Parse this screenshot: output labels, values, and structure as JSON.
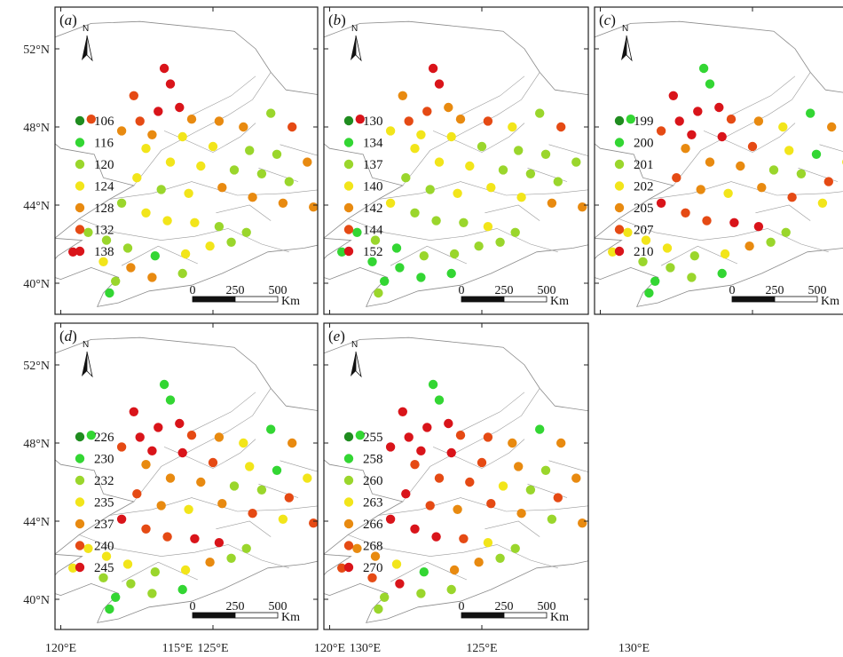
{
  "colors": [
    "#1f8c1f",
    "#33d633",
    "#9ad62c",
    "#f2e51a",
    "#e88a10",
    "#e54a14",
    "#d9141a"
  ],
  "lat_ticks": [
    "52°N",
    "48°N",
    "44°N",
    "40°N"
  ],
  "lon_ticks": [
    "115°E",
    "120°E",
    "125°E",
    "130°E"
  ],
  "north_label": "N",
  "scalebar": {
    "labels": [
      "0",
      "250",
      "500"
    ],
    "unit": "Km"
  },
  "panels": [
    {
      "id": "a",
      "letter": "a",
      "legend": [
        "106",
        "116",
        "120",
        "124",
        "128",
        "132",
        "138"
      ]
    },
    {
      "id": "b",
      "letter": "b",
      "legend": [
        "130",
        "134",
        "137",
        "140",
        "142",
        "144",
        "152"
      ]
    },
    {
      "id": "c",
      "letter": "c",
      "legend": [
        "199",
        "200",
        "201",
        "202",
        "205",
        "207",
        "210"
      ]
    },
    {
      "id": "d",
      "letter": "d",
      "legend": [
        "226",
        "230",
        "232",
        "235",
        "237",
        "240",
        "245"
      ]
    },
    {
      "id": "e",
      "letter": "e",
      "legend": [
        "255",
        "258",
        "260",
        "263",
        "266",
        "268",
        "270"
      ]
    }
  ],
  "stations": [
    [
      123.4,
      51.0
    ],
    [
      123.6,
      50.2
    ],
    [
      122.4,
      49.6
    ],
    [
      121.0,
      48.4
    ],
    [
      122.6,
      48.3
    ],
    [
      123.2,
      48.8
    ],
    [
      123.9,
      49.0
    ],
    [
      124.3,
      48.4
    ],
    [
      125.2,
      48.3
    ],
    [
      126.0,
      48.0
    ],
    [
      126.9,
      48.7
    ],
    [
      127.6,
      48.0
    ],
    [
      128.7,
      48.5
    ],
    [
      129.5,
      47.7
    ],
    [
      130.1,
      47.3
    ],
    [
      122.0,
      47.8
    ],
    [
      123.0,
      47.6
    ],
    [
      124.0,
      47.5
    ],
    [
      125.0,
      47.0
    ],
    [
      126.2,
      46.8
    ],
    [
      127.1,
      46.6
    ],
    [
      128.1,
      46.2
    ],
    [
      122.8,
      46.9
    ],
    [
      123.6,
      46.2
    ],
    [
      124.6,
      46.0
    ],
    [
      125.7,
      45.8
    ],
    [
      126.6,
      45.6
    ],
    [
      127.5,
      45.2
    ],
    [
      128.7,
      44.9
    ],
    [
      122.5,
      45.4
    ],
    [
      123.3,
      44.8
    ],
    [
      124.2,
      44.6
    ],
    [
      125.3,
      44.9
    ],
    [
      126.3,
      44.4
    ],
    [
      127.3,
      44.1
    ],
    [
      128.3,
      43.9
    ],
    [
      122.0,
      44.1
    ],
    [
      122.8,
      43.6
    ],
    [
      123.5,
      43.2
    ],
    [
      124.4,
      43.1
    ],
    [
      125.2,
      42.9
    ],
    [
      126.1,
      42.6
    ],
    [
      120.9,
      42.6
    ],
    [
      121.5,
      42.2
    ],
    [
      122.2,
      41.8
    ],
    [
      123.1,
      41.4
    ],
    [
      124.1,
      41.5
    ],
    [
      124.9,
      41.9
    ],
    [
      125.6,
      42.1
    ],
    [
      120.4,
      41.6
    ],
    [
      121.4,
      41.1
    ],
    [
      122.3,
      40.8
    ],
    [
      123.0,
      40.3
    ],
    [
      124.0,
      40.5
    ],
    [
      121.8,
      40.1
    ],
    [
      121.6,
      39.5
    ]
  ],
  "categories": {
    "a": [
      6,
      6,
      5,
      5,
      5,
      6,
      6,
      4,
      4,
      4,
      2,
      5,
      5,
      5,
      5,
      4,
      4,
      3,
      3,
      2,
      2,
      4,
      3,
      3,
      3,
      2,
      2,
      2,
      1,
      3,
      2,
      3,
      4,
      4,
      4,
      4,
      2,
      3,
      3,
      3,
      2,
      2,
      2,
      2,
      2,
      1,
      3,
      3,
      2,
      6,
      3,
      4,
      4,
      2,
      2,
      1
    ],
    "b": [
      6,
      6,
      4,
      6,
      5,
      5,
      4,
      4,
      5,
      3,
      2,
      5,
      5,
      5,
      4,
      3,
      3,
      3,
      2,
      2,
      2,
      2,
      3,
      3,
      3,
      2,
      2,
      2,
      2,
      2,
      2,
      3,
      3,
      3,
      4,
      4,
      3,
      2,
      2,
      2,
      3,
      2,
      1,
      2,
      1,
      2,
      2,
      2,
      2,
      1,
      1,
      1,
      1,
      1,
      1,
      2
    ],
    "c": [
      1,
      1,
      6,
      1,
      6,
      6,
      6,
      5,
      4,
      3,
      1,
      4,
      4,
      3,
      5,
      5,
      6,
      6,
      5,
      3,
      1,
      3,
      4,
      4,
      4,
      2,
      2,
      5,
      3,
      5,
      4,
      3,
      4,
      5,
      3,
      5,
      6,
      5,
      5,
      6,
      6,
      2,
      3,
      3,
      3,
      2,
      3,
      4,
      2,
      3,
      2,
      2,
      2,
      1,
      1,
      1
    ],
    "d": [
      1,
      1,
      6,
      1,
      6,
      6,
      6,
      5,
      4,
      3,
      1,
      4,
      4,
      3,
      5,
      5,
      6,
      6,
      5,
      3,
      1,
      3,
      4,
      4,
      4,
      2,
      2,
      5,
      3,
      5,
      4,
      3,
      4,
      5,
      3,
      5,
      6,
      5,
      5,
      6,
      6,
      2,
      3,
      3,
      3,
      2,
      3,
      4,
      2,
      3,
      2,
      2,
      2,
      1,
      1,
      1
    ],
    "e": [
      1,
      1,
      6,
      1,
      6,
      6,
      6,
      5,
      5,
      4,
      1,
      4,
      4,
      3,
      5,
      6,
      6,
      6,
      5,
      4,
      2,
      4,
      5,
      5,
      5,
      3,
      2,
      5,
      4,
      6,
      5,
      4,
      5,
      4,
      2,
      4,
      6,
      6,
      6,
      5,
      3,
      2,
      4,
      4,
      3,
      1,
      4,
      4,
      2,
      5,
      5,
      6,
      2,
      2,
      2,
      2
    ]
  }
}
